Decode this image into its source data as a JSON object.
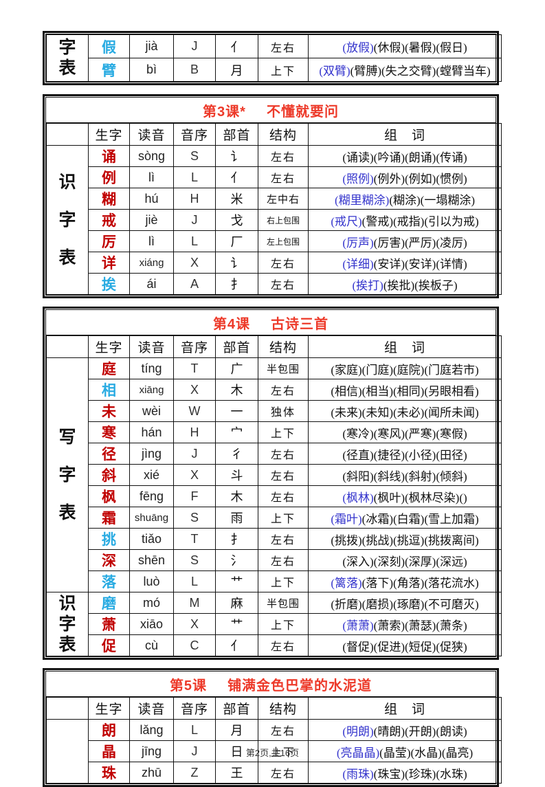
{
  "page": {
    "footer": "第2页,共16页",
    "colors": {
      "title_red": "#ed3a2a",
      "red_char": "#c00000",
      "cyan_char": "#29abe2",
      "blue_word": "#3333cc",
      "border": "#111111"
    }
  },
  "columns": [
    "生字",
    "读音",
    "音序",
    "部首",
    "结构",
    "组　词"
  ],
  "tables": [
    {
      "id": "continued",
      "title": null,
      "show_header": false,
      "label_sections": [
        {
          "text": "字表",
          "span": 2
        }
      ],
      "rows": [
        {
          "char": "假",
          "char_color": "cyan",
          "pinyin": "jià",
          "initial": "J",
          "radical": "亻",
          "structure": "左右",
          "words": [
            {
              "t": "(放假)",
              "hl": true
            },
            {
              "t": "(休假)"
            },
            {
              "t": "(暑假)"
            },
            {
              "t": "(假日)"
            }
          ]
        },
        {
          "char": "臂",
          "char_color": "cyan",
          "pinyin": "bì",
          "initial": "B",
          "radical": "月",
          "structure": "上下",
          "words": [
            {
              "t": "(双臂)",
              "hl": true
            },
            {
              "t": "(臂膊)"
            },
            {
              "t": "(失之交臂)"
            },
            {
              "t": "(螳臂当车)"
            }
          ]
        }
      ]
    },
    {
      "id": "lesson-3",
      "title": {
        "no": "第3课*",
        "name": "不懂就要问"
      },
      "show_header": true,
      "label_sections": [
        {
          "text": "识字表",
          "span": 7
        }
      ],
      "rows": [
        {
          "char": "诵",
          "char_color": "red",
          "pinyin": "sòng",
          "initial": "S",
          "radical": "讠",
          "structure": "左右",
          "words": [
            {
              "t": "(诵读)"
            },
            {
              "t": "(吟诵)"
            },
            {
              "t": "(朗诵)"
            },
            {
              "t": "(传诵)"
            }
          ]
        },
        {
          "char": "例",
          "char_color": "red",
          "pinyin": "lì",
          "initial": "L",
          "radical": "亻",
          "structure": "左右",
          "words": [
            {
              "t": "(照例)",
              "hl": true
            },
            {
              "t": "(例外)"
            },
            {
              "t": "(例如)"
            },
            {
              "t": "(惯例)"
            }
          ]
        },
        {
          "char": "糊",
          "char_color": "red",
          "pinyin": "hú",
          "initial": "H",
          "radical": "米",
          "structure": "左中右",
          "words": [
            {
              "t": "(糊里糊涂)",
              "hl": true
            },
            {
              "t": "(糊涂)"
            },
            {
              "t": "(一塌糊涂)"
            }
          ]
        },
        {
          "char": "戒",
          "char_color": "red",
          "pinyin": "jiè",
          "initial": "J",
          "radical": "戈",
          "structure": "右上包围",
          "words": [
            {
              "t": "(戒尺)",
              "hl": true
            },
            {
              "t": "(警戒)"
            },
            {
              "t": "(戒指)"
            },
            {
              "t": "(引以为戒)"
            }
          ]
        },
        {
          "char": "厉",
          "char_color": "red",
          "pinyin": "lì",
          "initial": "L",
          "radical": "厂",
          "structure": "左上包围",
          "words": [
            {
              "t": "(厉声)",
              "hl": true
            },
            {
              "t": "(厉害)"
            },
            {
              "t": "(严厉)"
            },
            {
              "t": "(凌厉)"
            }
          ]
        },
        {
          "char": "详",
          "char_color": "red",
          "pinyin": "xiáng",
          "initial": "X",
          "radical": "讠",
          "structure": "左右",
          "words": [
            {
              "t": "(详细)",
              "hl": true
            },
            {
              "t": "(安详)"
            },
            {
              "t": "(安详)"
            },
            {
              "t": "(详情)"
            }
          ]
        },
        {
          "char": "挨",
          "char_color": "cyan",
          "pinyin": "ái",
          "initial": "A",
          "radical": "扌",
          "structure": "左右",
          "words": [
            {
              "t": "(挨打)",
              "hl": true
            },
            {
              "t": "(挨批)"
            },
            {
              "t": "(挨板子)"
            }
          ]
        }
      ]
    },
    {
      "id": "lesson-4",
      "title": {
        "no": "第4课",
        "name": "古诗三首"
      },
      "show_header": true,
      "label_sections": [
        {
          "text": "写字表",
          "span": 11
        },
        {
          "text": "识字表",
          "span": 3
        }
      ],
      "rows": [
        {
          "char": "庭",
          "char_color": "red",
          "pinyin": "tíng",
          "initial": "T",
          "radical": "广",
          "structure": "半包围",
          "words": [
            {
              "t": "(家庭)"
            },
            {
              "t": "(门庭)"
            },
            {
              "t": "(庭院)"
            },
            {
              "t": "(门庭若市)"
            }
          ]
        },
        {
          "char": "相",
          "char_color": "cyan",
          "pinyin": "xiāng",
          "initial": "X",
          "radical": "木",
          "structure": "左右",
          "words": [
            {
              "t": "(相信)"
            },
            {
              "t": "(相当)"
            },
            {
              "t": "(相同)"
            },
            {
              "t": "(另眼相看)"
            }
          ]
        },
        {
          "char": "未",
          "char_color": "red",
          "pinyin": "wèi",
          "initial": "W",
          "radical": "一",
          "structure": "独体",
          "words": [
            {
              "t": "(未来)"
            },
            {
              "t": "(未知)"
            },
            {
              "t": "(未必)"
            },
            {
              "t": "(闻所未闻)"
            }
          ]
        },
        {
          "char": "寒",
          "char_color": "red",
          "pinyin": "hán",
          "initial": "H",
          "radical": "宀",
          "structure": "上下",
          "words": [
            {
              "t": "(寒冷)"
            },
            {
              "t": "(寒风)"
            },
            {
              "t": "(严寒)"
            },
            {
              "t": "(寒假)"
            }
          ]
        },
        {
          "char": "径",
          "char_color": "red",
          "pinyin": "jìng",
          "initial": "J",
          "radical": "彳",
          "structure": "左右",
          "words": [
            {
              "t": "(径直)"
            },
            {
              "t": "(捷径)"
            },
            {
              "t": "(小径)"
            },
            {
              "t": "(田径)"
            }
          ]
        },
        {
          "char": "斜",
          "char_color": "red",
          "pinyin": "xié",
          "initial": "X",
          "radical": "斗",
          "structure": "左右",
          "words": [
            {
              "t": "(斜阳)"
            },
            {
              "t": "(斜线)"
            },
            {
              "t": "(斜射)"
            },
            {
              "t": "(倾斜)"
            }
          ]
        },
        {
          "char": "枫",
          "char_color": "red",
          "pinyin": "fēng",
          "initial": "F",
          "radical": "木",
          "structure": "左右",
          "words": [
            {
              "t": "(枫林)",
              "hl": true
            },
            {
              "t": "(枫叶)"
            },
            {
              "t": "(枫林尽染)"
            },
            {
              "t": "()"
            }
          ]
        },
        {
          "char": "霜",
          "char_color": "red",
          "pinyin": "shuāng",
          "initial": "S",
          "radical": "雨",
          "structure": "上下",
          "words": [
            {
              "t": "(霜叶)",
              "hl": true
            },
            {
              "t": "(冰霜)"
            },
            {
              "t": "(白霜)"
            },
            {
              "t": "(雪上加霜)"
            }
          ]
        },
        {
          "char": "挑",
          "char_color": "cyan",
          "pinyin": "tiǎo",
          "initial": "T",
          "radical": "扌",
          "structure": "左右",
          "words": [
            {
              "t": "(挑拨)"
            },
            {
              "t": "(挑战)"
            },
            {
              "t": "(挑逗)"
            },
            {
              "t": "(挑拨离间)"
            }
          ]
        },
        {
          "char": "深",
          "char_color": "red",
          "pinyin": "shēn",
          "initial": "S",
          "radical": "氵",
          "structure": "左右",
          "words": [
            {
              "t": "(深入)"
            },
            {
              "t": "(深刻)"
            },
            {
              "t": "(深厚)"
            },
            {
              "t": "(深远)"
            }
          ]
        },
        {
          "char": "落",
          "char_color": "cyan",
          "pinyin": "luò",
          "initial": "L",
          "radical": "艹",
          "structure": "上下",
          "words": [
            {
              "t": "(篱落)",
              "hl": true
            },
            {
              "t": "(落下)"
            },
            {
              "t": "(角落)"
            },
            {
              "t": "(落花流水)"
            }
          ]
        },
        {
          "char": "磨",
          "char_color": "cyan",
          "pinyin": "mó",
          "initial": "M",
          "radical": "麻",
          "structure": "半包围",
          "words": [
            {
              "t": "(折磨)"
            },
            {
              "t": "(磨损)"
            },
            {
              "t": "(琢磨)"
            },
            {
              "t": "(不可磨灭)"
            }
          ]
        },
        {
          "char": "萧",
          "char_color": "red",
          "pinyin": "xiāo",
          "initial": "X",
          "radical": "艹",
          "structure": "上下",
          "words": [
            {
              "t": "(萧萧)",
              "hl": true
            },
            {
              "t": "(萧索)"
            },
            {
              "t": "(萧瑟)"
            },
            {
              "t": "(萧条)"
            }
          ]
        },
        {
          "char": "促",
          "char_color": "red",
          "pinyin": "cù",
          "initial": "C",
          "radical": "亻",
          "structure": "左右",
          "words": [
            {
              "t": "(督促)"
            },
            {
              "t": "(促进)"
            },
            {
              "t": "(短促)"
            },
            {
              "t": "(促狭)"
            }
          ]
        }
      ]
    },
    {
      "id": "lesson-5",
      "title": {
        "no": "第5课",
        "name": "铺满金色巴掌的水泥道"
      },
      "show_header": true,
      "label_sections": [
        {
          "text": "",
          "span": 3
        }
      ],
      "rows": [
        {
          "char": "朗",
          "char_color": "red",
          "pinyin": "lǎng",
          "initial": "L",
          "radical": "月",
          "structure": "左右",
          "words": [
            {
              "t": "(明朗)",
              "hl": true
            },
            {
              "t": "(晴朗)"
            },
            {
              "t": "(开朗)"
            },
            {
              "t": "(朗读)"
            }
          ]
        },
        {
          "char": "晶",
          "char_color": "red",
          "pinyin": "jīng",
          "initial": "J",
          "radical": "日",
          "structure": "上下",
          "words": [
            {
              "t": "(亮晶晶)",
              "hl": true
            },
            {
              "t": "(晶莹)"
            },
            {
              "t": "(水晶)"
            },
            {
              "t": "(晶亮)"
            }
          ]
        },
        {
          "char": "珠",
          "char_color": "red",
          "pinyin": "zhū",
          "initial": "Z",
          "radical": "王",
          "structure": "左右",
          "words": [
            {
              "t": "(雨珠)",
              "hl": true
            },
            {
              "t": "(珠宝)"
            },
            {
              "t": "(珍珠)"
            },
            {
              "t": "(水珠)"
            }
          ]
        }
      ]
    }
  ]
}
